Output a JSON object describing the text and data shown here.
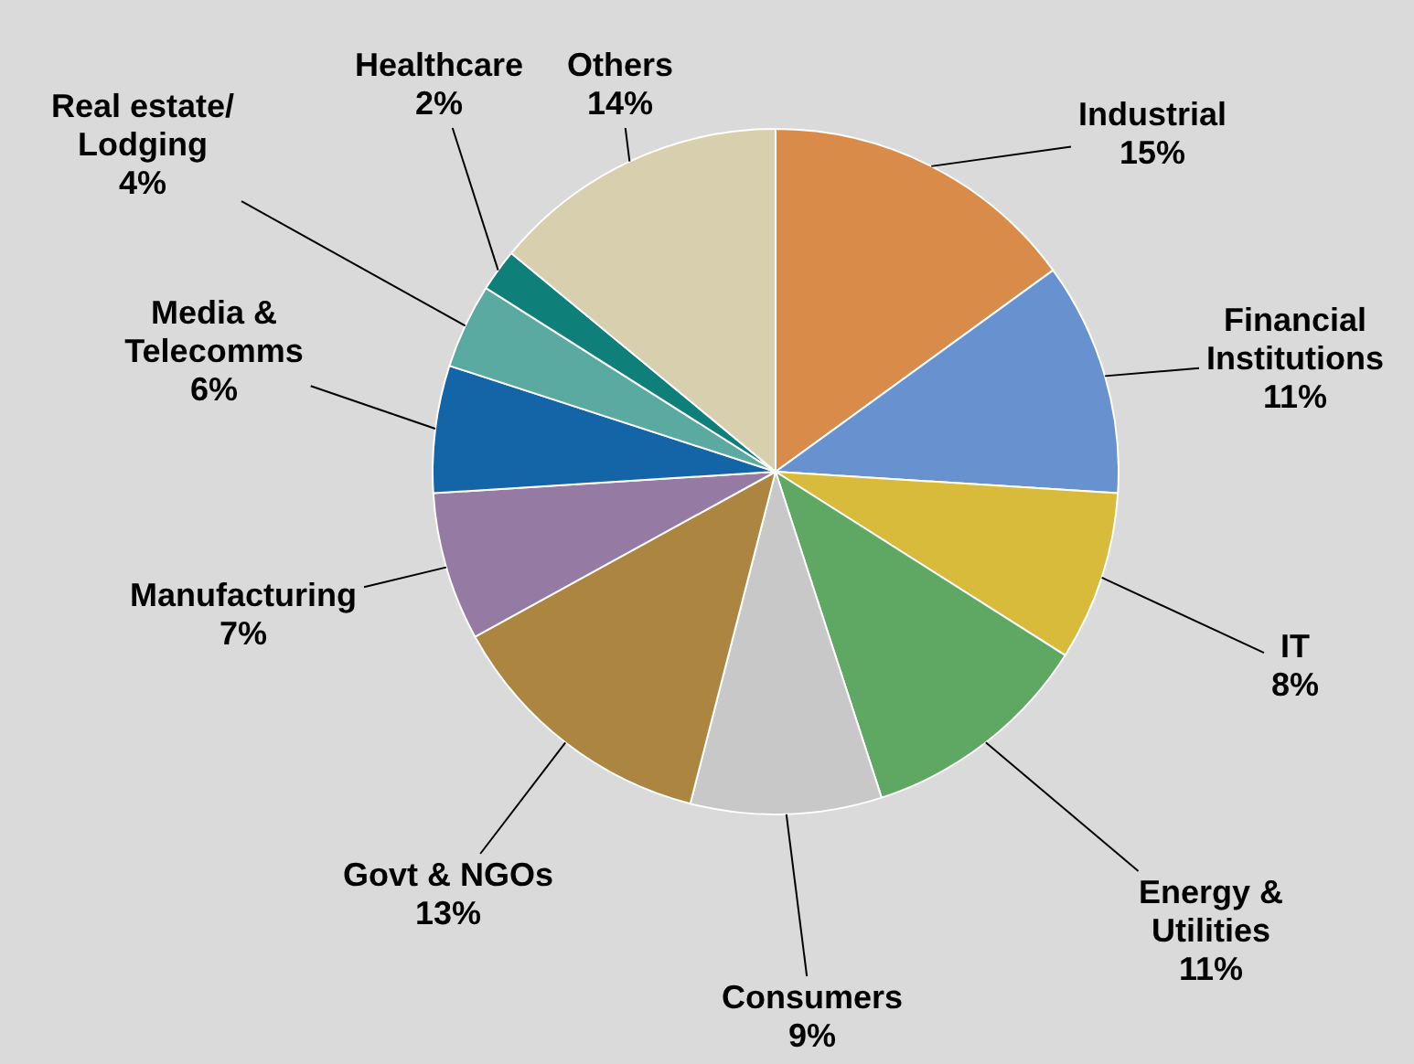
{
  "chart_data": {
    "type": "pie",
    "categories": [
      "Industrial",
      "Financial Institutions",
      "IT",
      "Energy & Utilities",
      "Consumers",
      "Govt & NGOs",
      "Manufacturing",
      "Media & Telecomms",
      "Real estate/ Lodging",
      "Healthcare",
      "Others"
    ],
    "values": [
      15,
      11,
      8,
      11,
      9,
      13,
      7,
      6,
      4,
      2,
      14
    ],
    "value_labels": [
      "15%",
      "11%",
      "8%",
      "11%",
      "9%",
      "13%",
      "7%",
      "6%",
      "4%",
      "2%",
      "14%"
    ],
    "colors": [
      "#d98b4a",
      "#6892cf",
      "#d8bb3a",
      "#5fa864",
      "#c8c8c8",
      "#ac8640",
      "#957aa3",
      "#1464a8",
      "#5aaaa2",
      "#0e7f79",
      "#d8cfaf"
    ],
    "legend": false
  }
}
